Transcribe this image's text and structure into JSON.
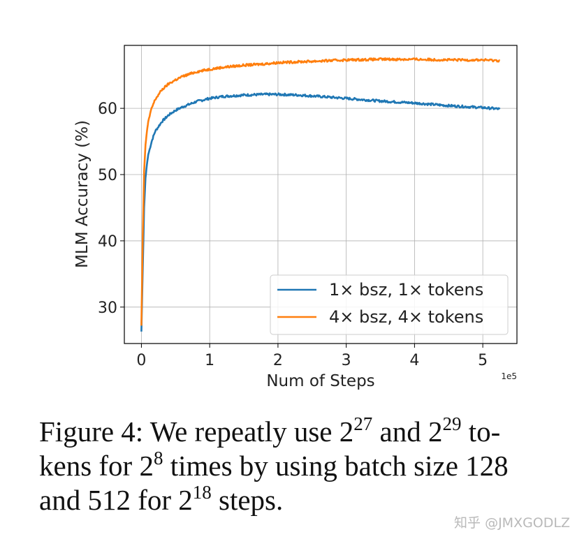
{
  "chart_data": {
    "type": "line",
    "xlabel": "Num of Steps",
    "ylabel": "MLM Accuracy (%)",
    "x_exponent_label": "1e5",
    "xlim": [
      -0.25,
      5.5
    ],
    "ylim": [
      24.5,
      69.5
    ],
    "x_ticks": [
      0,
      1,
      2,
      3,
      4,
      5
    ],
    "x_tick_labels": [
      "0",
      "1",
      "2",
      "3",
      "4",
      "5"
    ],
    "y_ticks": [
      30,
      40,
      50,
      60
    ],
    "y_tick_labels": [
      "30",
      "40",
      "50",
      "60"
    ],
    "grid": true,
    "legend_position": "lower-right",
    "series": [
      {
        "name": "1× bsz, 1× tokens",
        "color": "#1f77b4",
        "x": [
          0.0,
          0.02,
          0.04,
          0.06,
          0.08,
          0.1,
          0.15,
          0.2,
          0.3,
          0.4,
          0.5,
          0.6,
          0.8,
          1.0,
          1.2,
          1.5,
          1.8,
          2.0,
          2.3,
          2.6,
          3.0,
          3.5,
          4.0,
          4.5,
          5.0,
          5.25
        ],
        "y": [
          26.3,
          36.0,
          45.0,
          49.5,
          51.5,
          53.0,
          55.0,
          56.5,
          58.0,
          59.0,
          59.7,
          60.2,
          61.0,
          61.5,
          61.8,
          62.0,
          62.1,
          62.1,
          62.0,
          61.8,
          61.5,
          61.1,
          60.8,
          60.4,
          60.1,
          59.9
        ]
      },
      {
        "name": "4× bsz, 4× tokens",
        "color": "#ff7f0e",
        "x": [
          0.0,
          0.02,
          0.04,
          0.06,
          0.08,
          0.1,
          0.15,
          0.2,
          0.3,
          0.4,
          0.5,
          0.6,
          0.8,
          1.0,
          1.2,
          1.5,
          1.8,
          2.0,
          2.5,
          3.0,
          3.5,
          4.0,
          4.5,
          5.0,
          5.25
        ],
        "y": [
          27.2,
          41.0,
          50.5,
          54.5,
          56.5,
          58.0,
          60.0,
          61.3,
          62.8,
          63.7,
          64.3,
          64.8,
          65.5,
          65.9,
          66.2,
          66.5,
          66.7,
          66.9,
          67.1,
          67.3,
          67.4,
          67.4,
          67.3,
          67.3,
          67.2
        ]
      }
    ]
  },
  "caption": {
    "line1_a": "Figure 4:  We repeatly use 2",
    "line1_sup1": "27",
    "line1_b": " and 2",
    "line1_sup2": "29",
    "line1_c": " to-",
    "line2_a": "kens for 2",
    "line2_sup": "8",
    "line2_b": " times by using batch size 128",
    "line3_a": "and 512 for 2",
    "line3_sup": "18",
    "line3_b": " steps."
  },
  "watermark": "知乎 @JMXGODLZ"
}
